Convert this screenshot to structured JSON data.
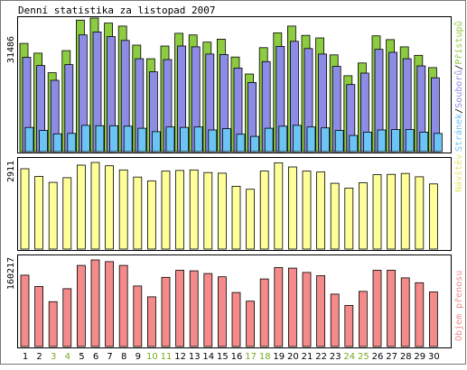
{
  "title": "Denní statistika za listopad 2007",
  "colors": {
    "hits": "#8dcb41",
    "files": "#8c8ce6",
    "pages": "#6cc4f4",
    "visits": "#ffff99",
    "kbytes": "#f48a8a",
    "weekday_label": "#000000",
    "weekend_label": "#77aa22",
    "legend_slash": "#000000"
  },
  "legend": {
    "top": [
      "Stránek",
      "/",
      "Souborů",
      "/",
      "Přístupů"
    ],
    "middle": "Návštěv",
    "bottom": "Objem přenosu"
  },
  "max_labels": {
    "top": "31486",
    "middle": "2911",
    "bottom": "160217"
  },
  "chart_data": [
    {
      "type": "bar",
      "title": "Denní statistika za listopad 2007",
      "categories": [
        "1",
        "2",
        "3",
        "4",
        "5",
        "6",
        "7",
        "8",
        "9",
        "10",
        "11",
        "12",
        "13",
        "14",
        "15",
        "16",
        "17",
        "18",
        "19",
        "20",
        "21",
        "22",
        "23",
        "24",
        "25",
        "26",
        "27",
        "28",
        "29",
        "30"
      ],
      "weekend_days": [
        "3",
        "4",
        "10",
        "11",
        "17",
        "18",
        "24",
        "25"
      ],
      "series": [
        {
          "name": "Přístupů",
          "values": [
            25500,
            23200,
            18600,
            23800,
            31000,
            31486,
            30300,
            29600,
            25100,
            21900,
            24900,
            27900,
            27500,
            25800,
            26500,
            22300,
            18300,
            24500,
            28000,
            29600,
            27400,
            26800,
            22800,
            17900,
            20900,
            27300,
            26400,
            24700,
            22700,
            19800
          ]
        },
        {
          "name": "Souborů",
          "values": [
            22200,
            20300,
            16800,
            20500,
            27500,
            28200,
            27100,
            26200,
            21900,
            18800,
            21700,
            24900,
            24700,
            23000,
            22900,
            19700,
            16300,
            21200,
            24800,
            26000,
            24300,
            23000,
            20100,
            15800,
            18500,
            24100,
            23400,
            21900,
            20200,
            17400
          ]
        },
        {
          "name": "Stránek",
          "values": [
            5700,
            5000,
            4200,
            4300,
            6200,
            6100,
            6100,
            6000,
            5500,
            4700,
            5800,
            5700,
            5800,
            5100,
            5400,
            4100,
            3600,
            5500,
            6000,
            6200,
            5800,
            5600,
            5000,
            3800,
            4600,
            5100,
            5200,
            5200,
            4600,
            4300
          ]
        }
      ],
      "ylim": [
        0,
        31486
      ]
    },
    {
      "type": "bar",
      "categories": [
        "1",
        "2",
        "3",
        "4",
        "5",
        "6",
        "7",
        "8",
        "9",
        "10",
        "11",
        "12",
        "13",
        "14",
        "15",
        "16",
        "17",
        "18",
        "19",
        "20",
        "21",
        "22",
        "23",
        "24",
        "25",
        "26",
        "27",
        "28",
        "29",
        "30"
      ],
      "series": [
        {
          "name": "Návštěv",
          "values": [
            2700,
            2440,
            2240,
            2400,
            2820,
            2911,
            2800,
            2660,
            2420,
            2290,
            2620,
            2640,
            2660,
            2570,
            2550,
            2110,
            2010,
            2620,
            2900,
            2760,
            2620,
            2590,
            2210,
            2050,
            2230,
            2500,
            2510,
            2540,
            2430,
            2190
          ]
        }
      ],
      "ylim": [
        0,
        2911
      ]
    },
    {
      "type": "bar",
      "categories": [
        "1",
        "2",
        "3",
        "4",
        "5",
        "6",
        "7",
        "8",
        "9",
        "10",
        "11",
        "12",
        "13",
        "14",
        "15",
        "16",
        "17",
        "18",
        "19",
        "20",
        "21",
        "22",
        "23",
        "24",
        "25",
        "26",
        "27",
        "28",
        "29",
        "30"
      ],
      "series": [
        {
          "name": "Objem přenosu",
          "values": [
            132000,
            111000,
            83000,
            107000,
            150000,
            160217,
            157000,
            150000,
            112000,
            92000,
            128000,
            141000,
            140000,
            135000,
            129000,
            100000,
            84000,
            125000,
            146000,
            145000,
            137000,
            131000,
            97000,
            76000,
            102000,
            141000,
            141000,
            127000,
            118000,
            101000
          ]
        }
      ],
      "ylim": [
        0,
        160217
      ]
    }
  ]
}
